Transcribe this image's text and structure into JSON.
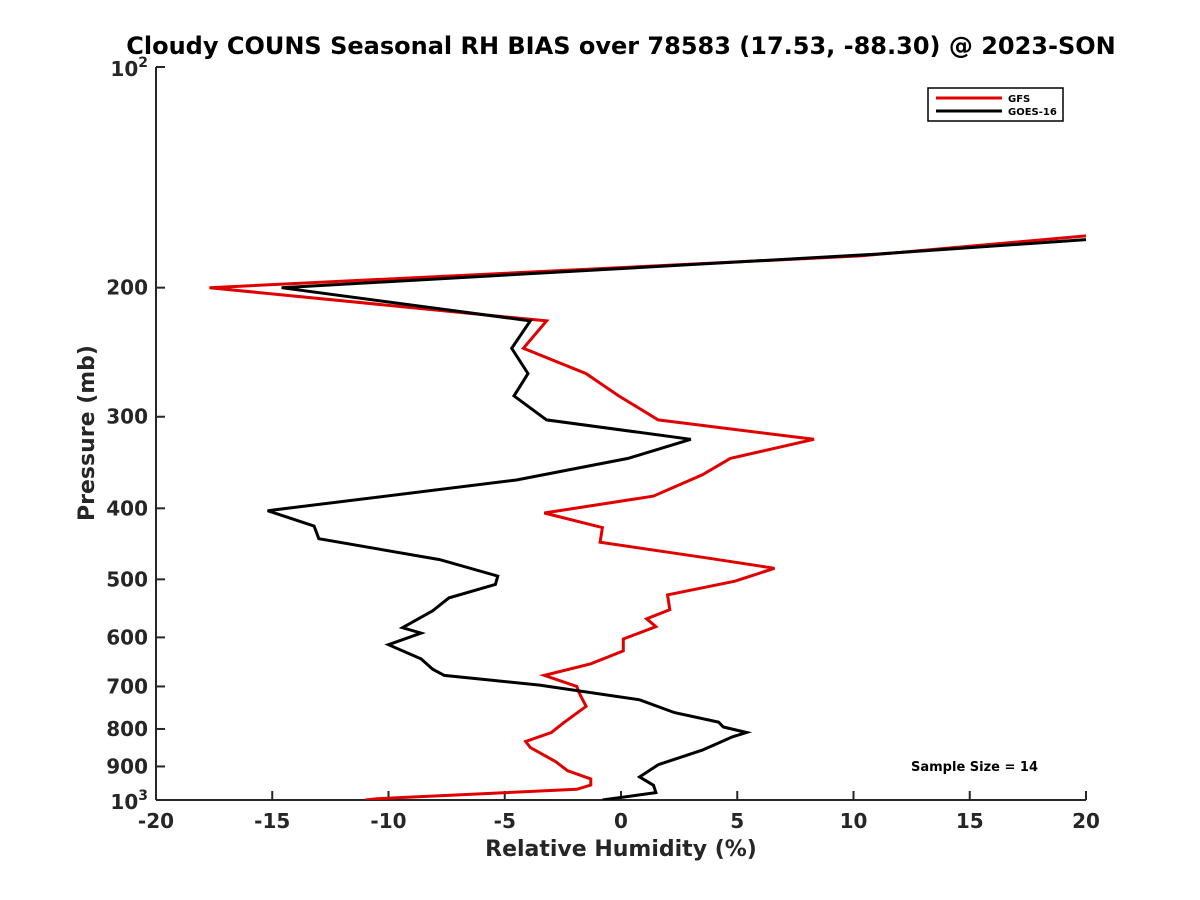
{
  "chart_data": {
    "type": "line",
    "title": "Cloudy COUNS Seasonal RH BIAS over 78583 (17.53, -88.30) @ 2023-SON",
    "xlabel": "Relative Humidity (%)",
    "ylabel": "Pressure (mb)",
    "xlim": [
      -20,
      20
    ],
    "ylim": [
      100,
      1000
    ],
    "y_scale": "log",
    "y_reversed": true,
    "x_ticks": [
      -20,
      -15,
      -10,
      -5,
      0,
      5,
      10,
      15,
      20
    ],
    "x_tick_labels": [
      "-20",
      "-15",
      "-10",
      "-5",
      "0",
      "5",
      "10",
      "15",
      "20"
    ],
    "y_tick_labels": [
      {
        "p": 200,
        "label": "200"
      },
      {
        "p": 300,
        "label": "300"
      },
      {
        "p": 400,
        "label": "400"
      },
      {
        "p": 500,
        "label": "500"
      },
      {
        "p": 600,
        "label": "600"
      },
      {
        "p": 700,
        "label": "700"
      },
      {
        "p": 800,
        "label": "800"
      },
      {
        "p": 900,
        "label": "900"
      }
    ],
    "y_power_ticks": [
      {
        "p": 100,
        "base": "10",
        "exp": "2"
      },
      {
        "p": 1000,
        "base": "10",
        "exp": "3"
      }
    ],
    "legend_position": "top-right",
    "annotation": "Sample Size = 14",
    "series": [
      {
        "name": "GFS",
        "color": "#e00000",
        "points": [
          [
            20,
            170
          ],
          [
            10.3,
            181
          ],
          [
            -17.7,
            200
          ],
          [
            -3.2,
            222
          ],
          [
            -4.2,
            242
          ],
          [
            -1.5,
            262
          ],
          [
            -0.1,
            281
          ],
          [
            1.6,
            303
          ],
          [
            8.3,
            322
          ],
          [
            4.7,
            342
          ],
          [
            3.5,
            360
          ],
          [
            1.4,
            385
          ],
          [
            -3.3,
            406
          ],
          [
            -0.8,
            425
          ],
          [
            -0.9,
            445
          ],
          [
            3.8,
            468
          ],
          [
            6.6,
            483
          ],
          [
            4.9,
            503
          ],
          [
            2.0,
            525
          ],
          [
            2.1,
            550
          ],
          [
            1.1,
            566
          ],
          [
            1.5,
            580
          ],
          [
            0.1,
            603
          ],
          [
            0.1,
            626
          ],
          [
            -1.3,
            652
          ],
          [
            -3.3,
            676
          ],
          [
            -1.9,
            700
          ],
          [
            -1.8,
            714
          ],
          [
            -1.5,
            745
          ],
          [
            -2.5,
            786
          ],
          [
            -3.0,
            809
          ],
          [
            -4.1,
            832
          ],
          [
            -3.9,
            848
          ],
          [
            -2.8,
            887
          ],
          [
            -2.3,
            912
          ],
          [
            -1.3,
            936
          ],
          [
            -1.3,
            954
          ],
          [
            -1.9,
            967
          ],
          [
            -10.5,
            996
          ],
          [
            -11.0,
            1000
          ]
        ]
      },
      {
        "name": "GOES-16",
        "color": "#000000",
        "points": [
          [
            20,
            172
          ],
          [
            11,
            180
          ],
          [
            -14.6,
            200
          ],
          [
            -3.9,
            222
          ],
          [
            -4.7,
            242
          ],
          [
            -4.0,
            262
          ],
          [
            -4.6,
            281
          ],
          [
            -3.2,
            303
          ],
          [
            3.0,
            322
          ],
          [
            0.3,
            342
          ],
          [
            -4.5,
            366
          ],
          [
            -15.2,
            403
          ],
          [
            -13.2,
            423
          ],
          [
            -13.0,
            440
          ],
          [
            -7.8,
            470
          ],
          [
            -5.3,
            495
          ],
          [
            -5.4,
            508
          ],
          [
            -7.4,
            530
          ],
          [
            -8.1,
            552
          ],
          [
            -9.4,
            582
          ],
          [
            -8.6,
            592
          ],
          [
            -10.0,
            614
          ],
          [
            -8.6,
            642
          ],
          [
            -8.1,
            663
          ],
          [
            -7.6,
            676
          ],
          [
            -3.5,
            697
          ],
          [
            0.8,
            730
          ],
          [
            2.3,
            760
          ],
          [
            4.2,
            783
          ],
          [
            4.4,
            795
          ],
          [
            5.4,
            809
          ],
          [
            4.8,
            820
          ],
          [
            3.5,
            855
          ],
          [
            1.6,
            895
          ],
          [
            0.8,
            930
          ],
          [
            1.4,
            955
          ],
          [
            1.5,
            977
          ],
          [
            -0.8,
            1000
          ]
        ]
      }
    ]
  }
}
